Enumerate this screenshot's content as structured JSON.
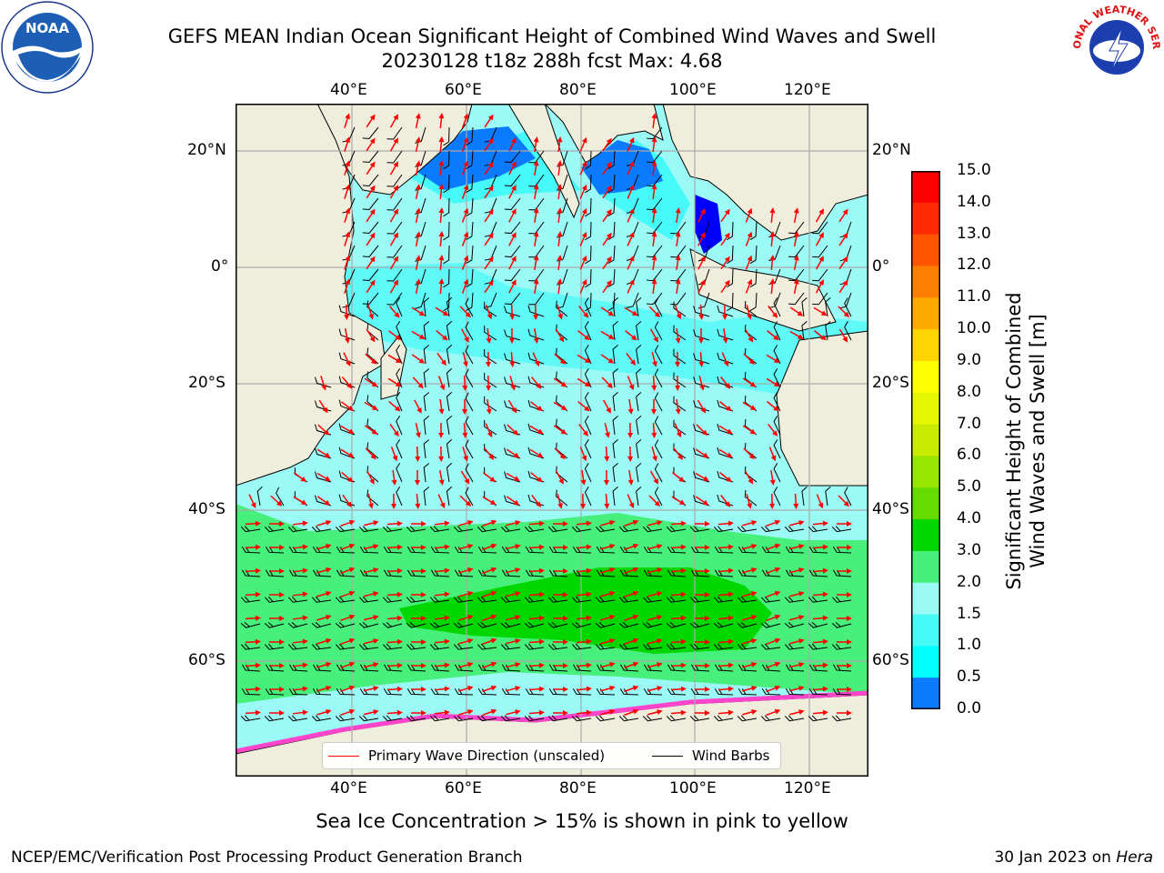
{
  "title": {
    "line1": "GEFS MEAN Indian Ocean Significant Height of Combined Wind Waves and Swell",
    "line2": "20230128 t18z 288h fcst   Max: 4.68"
  },
  "logos": {
    "left_text": "NOAA",
    "right_text": "NATIONAL WEATHER SERVICE",
    "left_ring_text": "NATIONAL OCEANIC AND ATMOSPHERIC ADMINISTRATION · U.S. DEPARTMENT OF COMMERCE"
  },
  "axes": {
    "lon_labels": [
      "40°E",
      "60°E",
      "80°E",
      "100°E",
      "120°E"
    ],
    "lat_labels": [
      "20°N",
      "0°",
      "20°S",
      "40°S",
      "60°S"
    ]
  },
  "legend": {
    "wave": "Primary Wave Direction (unscaled)",
    "wind": "Wind Barbs"
  },
  "colorbar": {
    "title_line1": "Significant Height of Combined",
    "title_line2": "Wind Waves and Swell [m]",
    "ticks": [
      "15.0",
      "14.0",
      "13.0",
      "12.0",
      "11.0",
      "10.0",
      "9.0",
      "8.0",
      "7.0",
      "6.0",
      "5.0",
      "4.0",
      "3.0",
      "2.0",
      "1.5",
      "1.0",
      "0.5",
      "0.0"
    ],
    "colors": [
      "#ff0000",
      "#ff2a00",
      "#ff5500",
      "#ff8000",
      "#ffaa00",
      "#ffd400",
      "#ffff00",
      "#e6f500",
      "#c8eb00",
      "#96e600",
      "#64dc00",
      "#00d600",
      "#46f07a",
      "#9bfaf5",
      "#46fafa",
      "#00ffff",
      "#0a7aff",
      "#0000ff"
    ]
  },
  "caption": "Sea Ice Concentration > 15% is shown in pink to yellow",
  "footer": {
    "left": "NCEP/EMC/Verification Post Processing Product Generation Branch",
    "right_date": "30 Jan 2023 on ",
    "right_host": "Hera"
  },
  "colors": {
    "land": "#efeedc",
    "wave_arrow": "#ff0000",
    "wind_barb": "#000000",
    "grid": "#aaaaaa"
  }
}
